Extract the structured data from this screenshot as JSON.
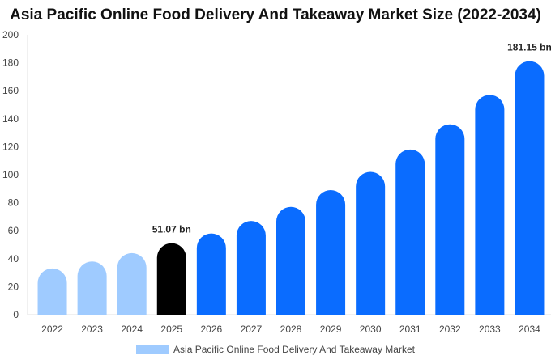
{
  "chart_data": {
    "type": "bar",
    "title": "Asia Pacific Online Food Delivery And Takeaway Market Size (2022-2034)",
    "categories": [
      "2022",
      "2023",
      "2024",
      "2025",
      "2026",
      "2027",
      "2028",
      "2029",
      "2030",
      "2031",
      "2032",
      "2033",
      "2034"
    ],
    "series": [
      {
        "name": "Asia Pacific Online Food Delivery And Takeaway Market",
        "values": [
          33,
          38,
          44,
          51.07,
          58,
          67,
          77,
          89,
          102,
          118,
          136,
          157,
          181.15
        ]
      }
    ],
    "bar_colors": [
      "#9fcbff",
      "#9fcbff",
      "#9fcbff",
      "#000000",
      "#0a6cff",
      "#0a6cff",
      "#0a6cff",
      "#0a6cff",
      "#0a6cff",
      "#0a6cff",
      "#0a6cff",
      "#0a6cff",
      "#0a6cff"
    ],
    "data_labels": [
      {
        "index": 3,
        "text": "51.07 bn"
      },
      {
        "index": 12,
        "text": "181.15 bn"
      }
    ],
    "yticks": [
      0,
      20,
      40,
      60,
      80,
      100,
      120,
      140,
      160,
      180,
      200
    ],
    "ylim": [
      0,
      200
    ],
    "xlabel": "",
    "ylabel": "",
    "grid": false,
    "legend": {
      "placement": "bottom",
      "label": "Asia Pacific Online Food Delivery And Takeaway Market",
      "color": "#9fcbff"
    }
  }
}
